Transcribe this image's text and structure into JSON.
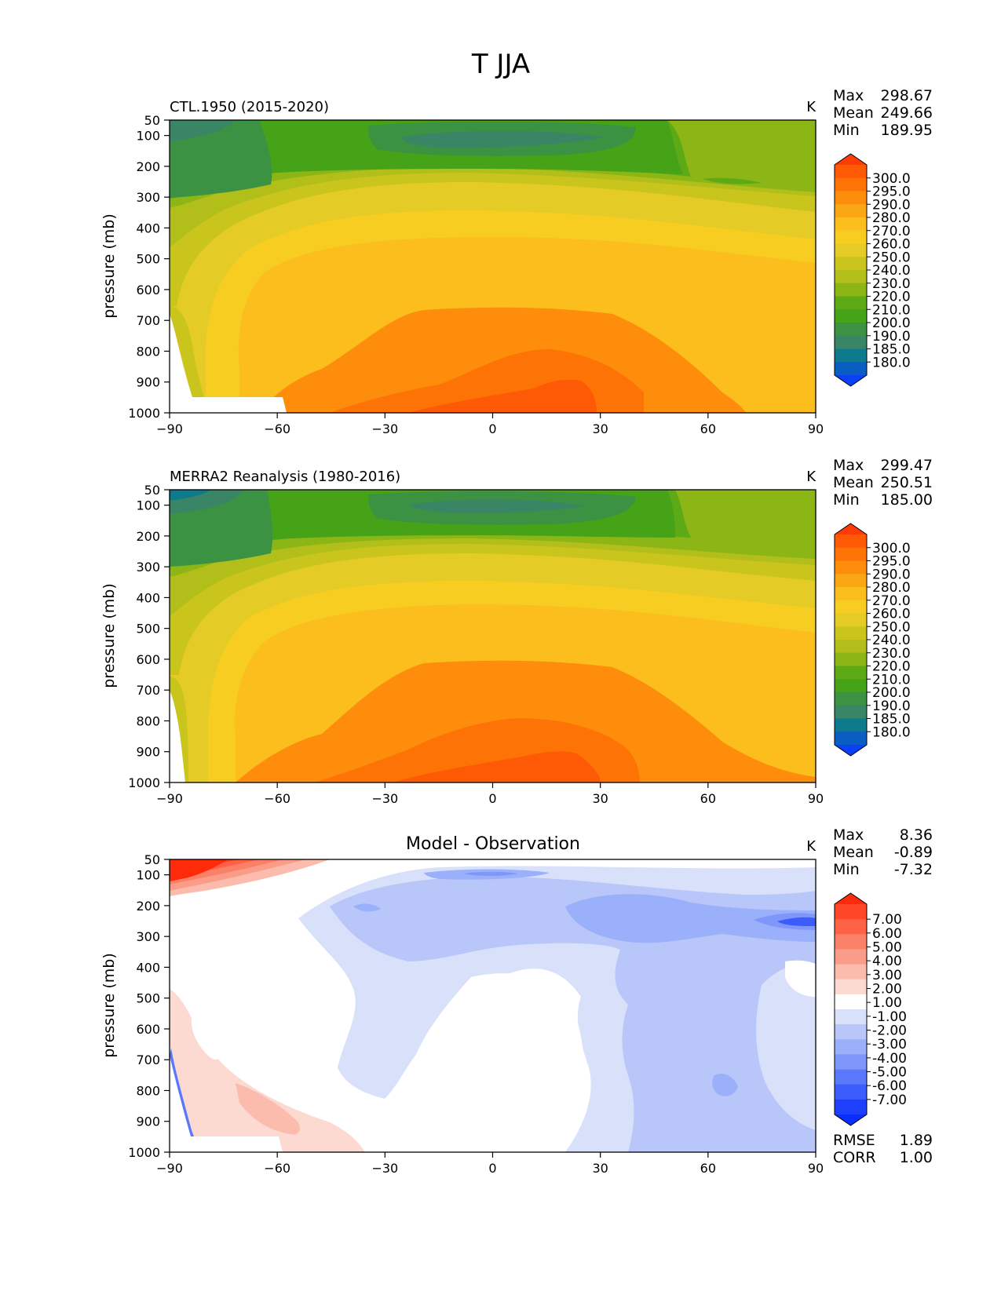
{
  "figure_title": "T JJA",
  "chart_data": [
    {
      "type": "contour",
      "title": "CTL.1950 (2015-2020)",
      "units": "K",
      "ylabel": "pressure (mb)",
      "xlim": [
        -90,
        90
      ],
      "ylim": [
        1000,
        50
      ],
      "x_ticks": [
        "−90",
        "−60",
        "−30",
        "0",
        "30",
        "60",
        "90"
      ],
      "y_ticks": [
        "50",
        "100",
        "200",
        "300",
        "400",
        "500",
        "600",
        "700",
        "800",
        "900",
        "1000"
      ],
      "stats": [
        {
          "label": "Max",
          "value": "298.67"
        },
        {
          "label": "Mean",
          "value": "249.66"
        },
        {
          "label": "Min",
          "value": "189.95"
        }
      ],
      "colorbar_labels": [
        "300.0",
        "295.0",
        "290.0",
        "280.0",
        "270.0",
        "260.0",
        "250.0",
        "240.0",
        "230.0",
        "220.0",
        "210.0",
        "200.0",
        "190.0",
        "185.0",
        "180.0"
      ],
      "colorbar_colors": [
        "#fe3b05",
        "#fe5a05",
        "#fe7305",
        "#fd8d0b",
        "#fba614",
        "#fbbe1c",
        "#f7cd22",
        "#e5cb25",
        "#c9c51d",
        "#b2be1a",
        "#8cb616",
        "#5eaa16",
        "#46a217",
        "#3a9242",
        "#3a8566",
        "#0e7a8e",
        "#0a5dc1",
        "#0a41f6"
      ]
    },
    {
      "type": "contour",
      "title": "MERRA2 Reanalysis (1980-2016)",
      "units": "K",
      "ylabel": "pressure (mb)",
      "xlim": [
        -90,
        90
      ],
      "ylim": [
        1000,
        50
      ],
      "x_ticks": [
        "−90",
        "−60",
        "−30",
        "0",
        "30",
        "60",
        "90"
      ],
      "y_ticks": [
        "50",
        "100",
        "200",
        "300",
        "400",
        "500",
        "600",
        "700",
        "800",
        "900",
        "1000"
      ],
      "stats": [
        {
          "label": "Max",
          "value": "299.47"
        },
        {
          "label": "Mean",
          "value": "250.51"
        },
        {
          "label": "Min",
          "value": "185.00"
        }
      ],
      "colorbar_labels": [
        "300.0",
        "295.0",
        "290.0",
        "280.0",
        "270.0",
        "260.0",
        "250.0",
        "240.0",
        "230.0",
        "220.0",
        "210.0",
        "200.0",
        "190.0",
        "185.0",
        "180.0"
      ],
      "colorbar_colors": [
        "#fe3b05",
        "#fe5a05",
        "#fe7305",
        "#fd8d0b",
        "#fba614",
        "#fbbe1c",
        "#f7cd22",
        "#e5cb25",
        "#c9c51d",
        "#b2be1a",
        "#8cb616",
        "#5eaa16",
        "#46a217",
        "#3a9242",
        "#3a8566",
        "#0e7a8e",
        "#0a5dc1",
        "#0a41f6"
      ]
    },
    {
      "type": "contour",
      "title": "Model - Observation",
      "units": "K",
      "ylabel": "pressure (mb)",
      "xlim": [
        -90,
        90
      ],
      "ylim": [
        1000,
        50
      ],
      "x_ticks": [
        "−90",
        "−60",
        "−30",
        "0",
        "30",
        "60",
        "90"
      ],
      "y_ticks": [
        "50",
        "100",
        "200",
        "300",
        "400",
        "500",
        "600",
        "700",
        "800",
        "900",
        "1000"
      ],
      "stats": [
        {
          "label": "Max",
          "value": "8.36"
        },
        {
          "label": "Mean",
          "value": "-0.89"
        },
        {
          "label": "Min",
          "value": "-7.32"
        }
      ],
      "extra_stats": [
        {
          "label": "RMSE",
          "value": "1.89"
        },
        {
          "label": "CORR",
          "value": "1.00"
        }
      ],
      "colorbar_labels": [
        "7.00",
        "6.00",
        "5.00",
        "4.00",
        "3.00",
        "2.00",
        "1.00",
        "-1.00",
        "-2.00",
        "-3.00",
        "-4.00",
        "-5.00",
        "-6.00",
        "-7.00"
      ],
      "colorbar_colors": [
        "#fe2a0a",
        "#fe4628",
        "#fd6247",
        "#fb8068",
        "#fa9c88",
        "#fbbcae",
        "#fcd9d1",
        "#ffffff",
        "#d9e0fa",
        "#b8c6fa",
        "#9bb0fa",
        "#7f96fa",
        "#5a78fa",
        "#3c5dfb",
        "#1e40fc",
        "#0a2efc"
      ]
    }
  ]
}
